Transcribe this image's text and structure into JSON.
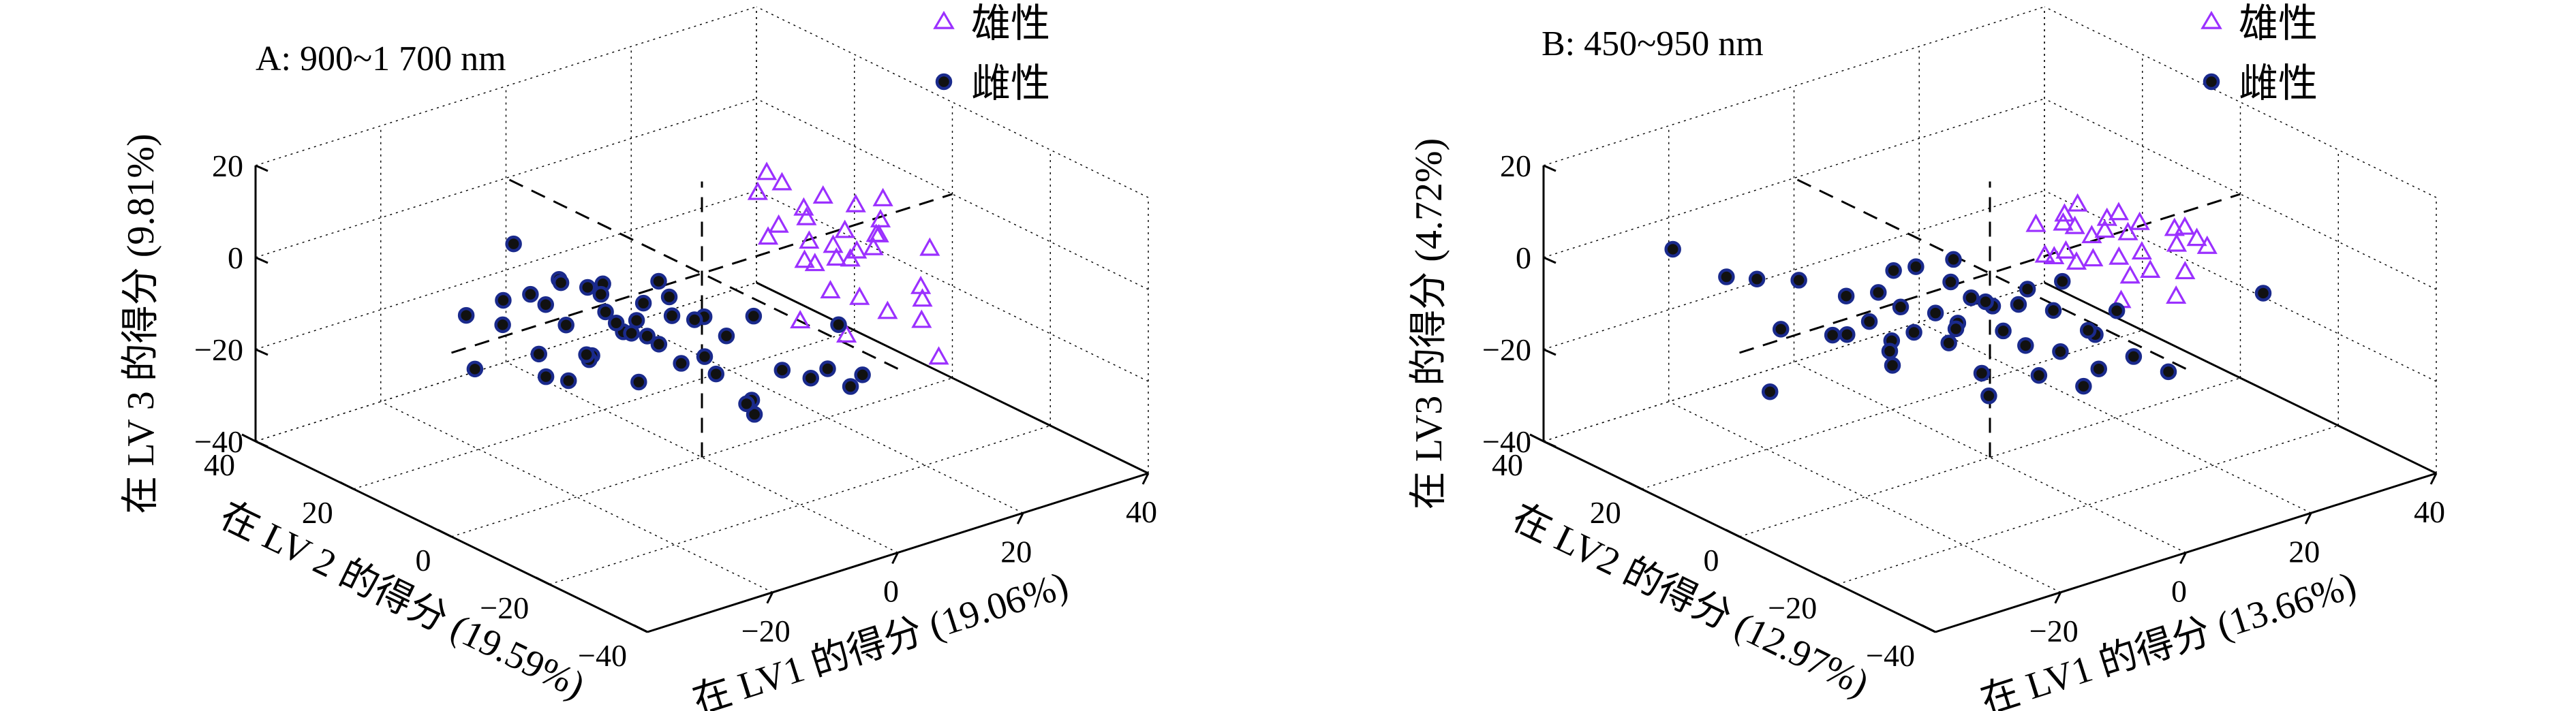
{
  "chart_data": [
    {
      "type": "scatter",
      "projection": "3d",
      "title": "A: 900~1 700 nm",
      "xlabel": "在  LV1 的得分 (19.06%)",
      "ylabel": "在 LV 2 的得分 (19.59%)",
      "zlabel": "在 LV 3 的得分 (9.81%)",
      "xlim": [
        -40,
        40
      ],
      "ylim": [
        -40,
        40
      ],
      "zlim": [
        -40,
        20
      ],
      "xticks": [
        "−20",
        "0",
        "20",
        "40"
      ],
      "yticks": [
        "−40",
        "−20",
        "0",
        "20",
        "40"
      ],
      "zticks": [
        "−40",
        "−20",
        "0",
        "20"
      ],
      "grid": true,
      "legend": "top-right",
      "series": [
        {
          "name": "雄性",
          "marker": "triangle",
          "color": "#9b30ff",
          "points": [
            [
              5,
              -5,
              18
            ],
            [
              8,
              -3,
              20
            ],
            [
              10,
              -8,
              14
            ],
            [
              12,
              -6,
              10
            ],
            [
              15,
              -10,
              8
            ],
            [
              7,
              -12,
              6
            ],
            [
              9,
              -2,
              5
            ],
            [
              14,
              -4,
              3
            ],
            [
              11,
              -9,
              2
            ],
            [
              16,
              -7,
              0
            ],
            [
              18,
              -12,
              4
            ],
            [
              13,
              -15,
              7
            ],
            [
              6,
              -8,
              12
            ],
            [
              10,
              -14,
              9
            ],
            [
              17,
              -3,
              11
            ],
            [
              19,
              -6,
              -2
            ],
            [
              20,
              -10,
              5
            ],
            [
              8,
              -16,
              1
            ],
            [
              12,
              -1,
              15
            ],
            [
              15,
              -13,
              -5
            ],
            [
              22,
              -8,
              3
            ],
            [
              24,
              -14,
              -6
            ],
            [
              21,
              -18,
              -10
            ],
            [
              14,
              -20,
              -4
            ],
            [
              18,
              -22,
              -2
            ],
            [
              25,
              -5,
              8
            ],
            [
              9,
              -18,
              -8
            ],
            [
              27,
              -12,
              0
            ],
            [
              11,
              -6,
              -12
            ],
            [
              30,
              -10,
              -26
            ],
            [
              16,
              -16,
              13
            ],
            [
              23,
              -2,
              6
            ]
          ]
        },
        {
          "name": "雌性",
          "marker": "circle",
          "color": "#1a2a8c",
          "points": [
            [
              -20,
              15,
              -5
            ],
            [
              -18,
              12,
              -3
            ],
            [
              -15,
              10,
              0
            ],
            [
              -16,
              18,
              4
            ],
            [
              -22,
              20,
              -10
            ],
            [
              -12,
              8,
              -2
            ],
            [
              -14,
              14,
              -8
            ],
            [
              -10,
              16,
              -6
            ],
            [
              -8,
              10,
              -4
            ],
            [
              -6,
              12,
              -12
            ],
            [
              -17,
              6,
              -7
            ],
            [
              -13,
              4,
              -1
            ],
            [
              -11,
              2,
              -9
            ],
            [
              -19,
              9,
              -14
            ],
            [
              -21,
              5,
              -16
            ],
            [
              -9,
              6,
              -10
            ],
            [
              -7,
              3,
              -5
            ],
            [
              -5,
              8,
              -15
            ],
            [
              -4,
              1,
              -8
            ],
            [
              -3,
              5,
              -3
            ],
            [
              -24,
              10,
              -6
            ],
            [
              -16,
              2,
              -12
            ],
            [
              -12,
              -2,
              -4
            ],
            [
              -10,
              -4,
              -9
            ],
            [
              -8,
              -6,
              -13
            ],
            [
              -2,
              -3,
              -7
            ],
            [
              0,
              -5,
              -11
            ],
            [
              2,
              -8,
              -6
            ],
            [
              -6,
              -1,
              -2
            ],
            [
              -14,
              -5,
              -15
            ],
            [
              -18,
              0,
              -11
            ],
            [
              -20,
              -2,
              -8
            ],
            [
              -4,
              -8,
              -16
            ],
            [
              5,
              -10,
              -18
            ],
            [
              8,
              -12,
              -20
            ],
            [
              12,
              -15,
              -22
            ],
            [
              -1,
              -12,
              -24
            ],
            [
              -15,
              -8,
              -3
            ],
            [
              -9,
              -10,
              -1
            ],
            [
              -3,
              -14,
              -19
            ],
            [
              6,
              -18,
              -14
            ],
            [
              10,
              -20,
              -16
            ],
            [
              -30,
              8,
              -12
            ],
            [
              -26,
              -6,
              -9
            ],
            [
              4,
              -4,
              -28
            ],
            [
              14,
              -10,
              -12
            ],
            [
              2,
              2,
              -20
            ]
          ]
        }
      ]
    },
    {
      "type": "scatter",
      "projection": "3d",
      "title": "B: 450~950 nm",
      "xlabel": "在 LV1 的得分 (13.66%)",
      "ylabel": "在 LV2 的得分 (12.97%)",
      "zlabel": "在 LV3 的得分 (4.72%)",
      "xlim": [
        -40,
        40
      ],
      "ylim": [
        -40,
        40
      ],
      "zlim": [
        -40,
        20
      ],
      "xticks": [
        "−20",
        "0",
        "20",
        "40"
      ],
      "yticks": [
        "−40",
        "−20",
        "0",
        "20",
        "40"
      ],
      "zticks": [
        "−40",
        "−20",
        "0",
        "20"
      ],
      "grid": true,
      "legend": "top-right",
      "series": [
        {
          "name": "雄性",
          "marker": "triangle",
          "color": "#9b30ff",
          "points": [
            [
              5,
              -3,
              10
            ],
            [
              8,
              -5,
              12
            ],
            [
              10,
              -8,
              8
            ],
            [
              12,
              -2,
              6
            ],
            [
              14,
              -6,
              9
            ],
            [
              6,
              -10,
              5
            ],
            [
              9,
              -4,
              3
            ],
            [
              15,
              -9,
              7
            ],
            [
              11,
              -7,
              2
            ],
            [
              16,
              -3,
              4
            ],
            [
              18,
              -8,
              1
            ],
            [
              13,
              -12,
              0
            ],
            [
              7,
              -6,
              11
            ],
            [
              20,
              -5,
              5
            ],
            [
              22,
              -10,
              2
            ],
            [
              17,
              -11,
              -1
            ],
            [
              19,
              -2,
              6
            ],
            [
              24,
              -7,
              3
            ],
            [
              21,
              -13,
              -2
            ],
            [
              26,
              -9,
              1
            ],
            [
              10,
              -14,
              -3
            ],
            [
              28,
              -4,
              0
            ],
            [
              14,
              0,
              9
            ],
            [
              8,
              -1,
              1
            ],
            [
              12,
              -11,
              4
            ],
            [
              30,
              -6,
              -4
            ],
            [
              4,
              -8,
              6
            ],
            [
              18,
              -15,
              -5
            ]
          ]
        },
        {
          "name": "雌性",
          "marker": "circle",
          "color": "#1a2a8c",
          "points": [
            [
              -10,
              10,
              -5
            ],
            [
              -8,
              8,
              -8
            ],
            [
              -6,
              12,
              -3
            ],
            [
              -4,
              6,
              -10
            ],
            [
              -12,
              14,
              -7
            ],
            [
              -2,
              4,
              -12
            ],
            [
              0,
              8,
              -6
            ],
            [
              2,
              2,
              -9
            ],
            [
              4,
              6,
              -11
            ],
            [
              -5,
              2,
              -14
            ],
            [
              -7,
              -2,
              -8
            ],
            [
              -3,
              0,
              -4
            ],
            [
              -1,
              -4,
              -10
            ],
            [
              1,
              -6,
              -13
            ],
            [
              3,
              -2,
              -7
            ],
            [
              5,
              -8,
              -15
            ],
            [
              7,
              -4,
              -9
            ],
            [
              9,
              -10,
              -12
            ],
            [
              11,
              -6,
              -14
            ],
            [
              -9,
              4,
              -11
            ],
            [
              -11,
              6,
              -13
            ],
            [
              -13,
              8,
              -9
            ],
            [
              -15,
              10,
              -12
            ],
            [
              6,
              0,
              -6
            ],
            [
              8,
              -12,
              -18
            ],
            [
              12,
              -14,
              -16
            ],
            [
              -6,
              -6,
              -16
            ],
            [
              -14,
              2,
              -15
            ],
            [
              14,
              -8,
              -10
            ],
            [
              10,
              -2,
              -5
            ],
            [
              -35,
              20,
              10
            ],
            [
              -28,
              18,
              2
            ],
            [
              -20,
              22,
              -4
            ],
            [
              -24,
              12,
              -8
            ],
            [
              -18,
              16,
              -2
            ],
            [
              -32,
              4,
              -14
            ],
            [
              -16,
              0,
              -10
            ],
            [
              2,
              10,
              -3
            ],
            [
              16,
              -16,
              -20
            ],
            [
              -4,
              10,
              -2
            ],
            [
              28,
              -20,
              -6
            ],
            [
              0,
              -10,
              -17
            ],
            [
              -8,
              -10,
              -18
            ],
            [
              4,
              -14,
              -19
            ],
            [
              -22,
              4,
              -6
            ]
          ]
        }
      ]
    }
  ]
}
